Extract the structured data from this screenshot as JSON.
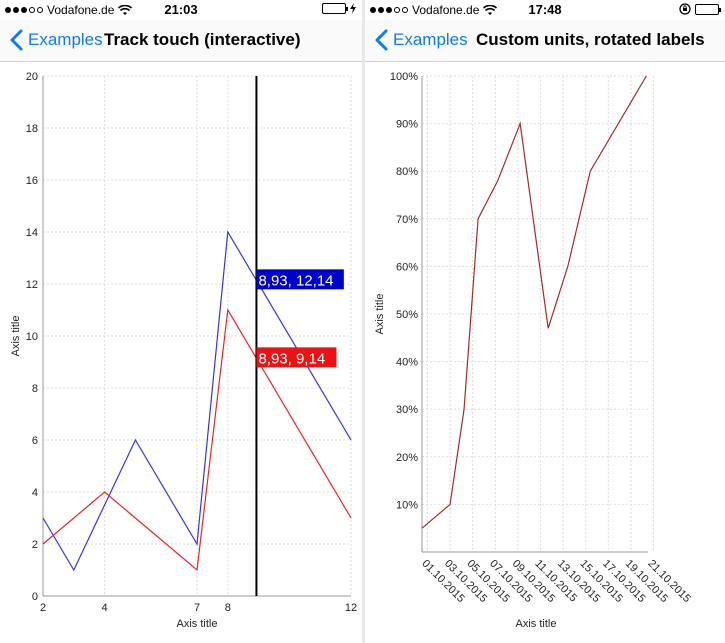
{
  "left_screen": {
    "status_bar": {
      "carrier": "Vodafone.de",
      "time": "21:03"
    },
    "nav": {
      "back_label": "Examples",
      "title": "Track touch (interactive)"
    },
    "chart_data": {
      "type": "line",
      "xlabel": "Axis title",
      "ylabel": "Axis title",
      "xlim": [
        2,
        12
      ],
      "ylim": [
        0,
        20
      ],
      "x_ticks": [
        2,
        4,
        7,
        8,
        12
      ],
      "y_ticks": [
        0,
        2,
        4,
        6,
        8,
        10,
        12,
        14,
        16,
        18,
        20
      ],
      "grid": true,
      "series": [
        {
          "color": "#3333ee",
          "points": [
            [
              2,
              3
            ],
            [
              3,
              1
            ],
            [
              5,
              6
            ],
            [
              7,
              2
            ],
            [
              8,
              14
            ],
            [
              12,
              6
            ]
          ]
        },
        {
          "color": "#ee2222",
          "points": [
            [
              2,
              2
            ],
            [
              4,
              4
            ],
            [
              7,
              1
            ],
            [
              8,
              11
            ],
            [
              12,
              3
            ]
          ]
        }
      ],
      "cursor_x": 8.93,
      "tooltips": [
        {
          "text": "8,93, 12,14",
          "color": "#0000cc",
          "y": 12.14
        },
        {
          "text": "8,93, 9,14",
          "color": "#ee1111",
          "y": 9.14
        }
      ]
    }
  },
  "right_screen": {
    "status_bar": {
      "carrier": "Vodafone.de",
      "time": "17:48"
    },
    "nav": {
      "back_label": "Examples",
      "title": "Custom units, rotated labels"
    },
    "chart_data": {
      "type": "line",
      "xlabel": "Axis title",
      "ylabel": "Axis title",
      "categories": [
        "01.10.2015",
        "03.10.2015",
        "05.10.2015",
        "07.10.2015",
        "09.10.2015",
        "11.10.2015",
        "13.10.2015",
        "15.10.2015",
        "17.10.2015",
        "19.10.2015",
        "21.10.2015"
      ],
      "y_ticks": [
        "10%",
        "20%",
        "30%",
        "40%",
        "50%",
        "60%",
        "70%",
        "80%",
        "90%",
        "100%"
      ],
      "ylim": [
        0,
        100
      ],
      "grid": true,
      "series": [
        {
          "color": "#a52a2a",
          "points": [
            [
              0,
              5
            ],
            [
              1,
              10
            ],
            [
              1.5,
              30
            ],
            [
              2,
              70
            ],
            [
              2.7,
              78
            ],
            [
              3.5,
              90
            ],
            [
              4.5,
              47
            ],
            [
              5.2,
              60
            ],
            [
              6,
              80
            ],
            [
              7,
              90
            ],
            [
              8,
              100
            ]
          ]
        }
      ]
    }
  }
}
